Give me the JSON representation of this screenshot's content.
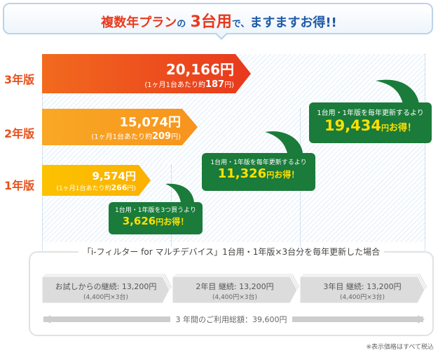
{
  "headline": {
    "part1": "複数年プラン",
    "part2": "の",
    "part3": "3台用",
    "part4": "で、",
    "part5": "ますますお得!!"
  },
  "years": [
    {
      "label": "3年版",
      "price": "20,166円",
      "sub_prefix": "(1ヶ月1台あたり約",
      "sub_value": "187",
      "sub_suffix": "円)"
    },
    {
      "label": "2年版",
      "price": "15,074円",
      "sub_prefix": "(1ヶ月1台あたり約",
      "sub_value": "209",
      "sub_suffix": "円)"
    },
    {
      "label": "1年版",
      "price": "9,574円",
      "sub_prefix": "(1ヶ月1台あたり約",
      "sub_value": "266",
      "sub_suffix": "円)"
    }
  ],
  "savings": [
    {
      "line": "1台用・1年版を毎年更新するより",
      "amount": "19,434",
      "unit": "円",
      "tail": "お得！"
    },
    {
      "line": "1台用・1年版を毎年更新するより",
      "amount": "11,326",
      "unit": "円",
      "tail": "お得！"
    },
    {
      "line": "1台用・1年版を3つ買うより",
      "amount": "3,626",
      "unit": "円",
      "tail": "お得！"
    }
  ],
  "comparison": {
    "title": "「i-フィルター for マルチデバイス」1台用・1年版×3台分を毎年更新した場合",
    "steps": [
      {
        "label": "お試しからの継続: 13,200円",
        "sub": "(4,400円×3台)"
      },
      {
        "label": "2年目 継続: 13,200円",
        "sub": "(4,400円×3台)"
      },
      {
        "label": "3年目 継続: 13,200円",
        "sub": "(4,400円×3台)"
      }
    ],
    "total": "3 年間のご利用総額：39,600円"
  },
  "footnote": "※表示価格はすべて税込",
  "colors": {
    "bar3": "#e8501c",
    "bar2": "#f7941d",
    "bar1": "#fbb900",
    "bubble": "#1a7b3a",
    "accent": "#e8391d",
    "blue": "#1e5aa8"
  }
}
